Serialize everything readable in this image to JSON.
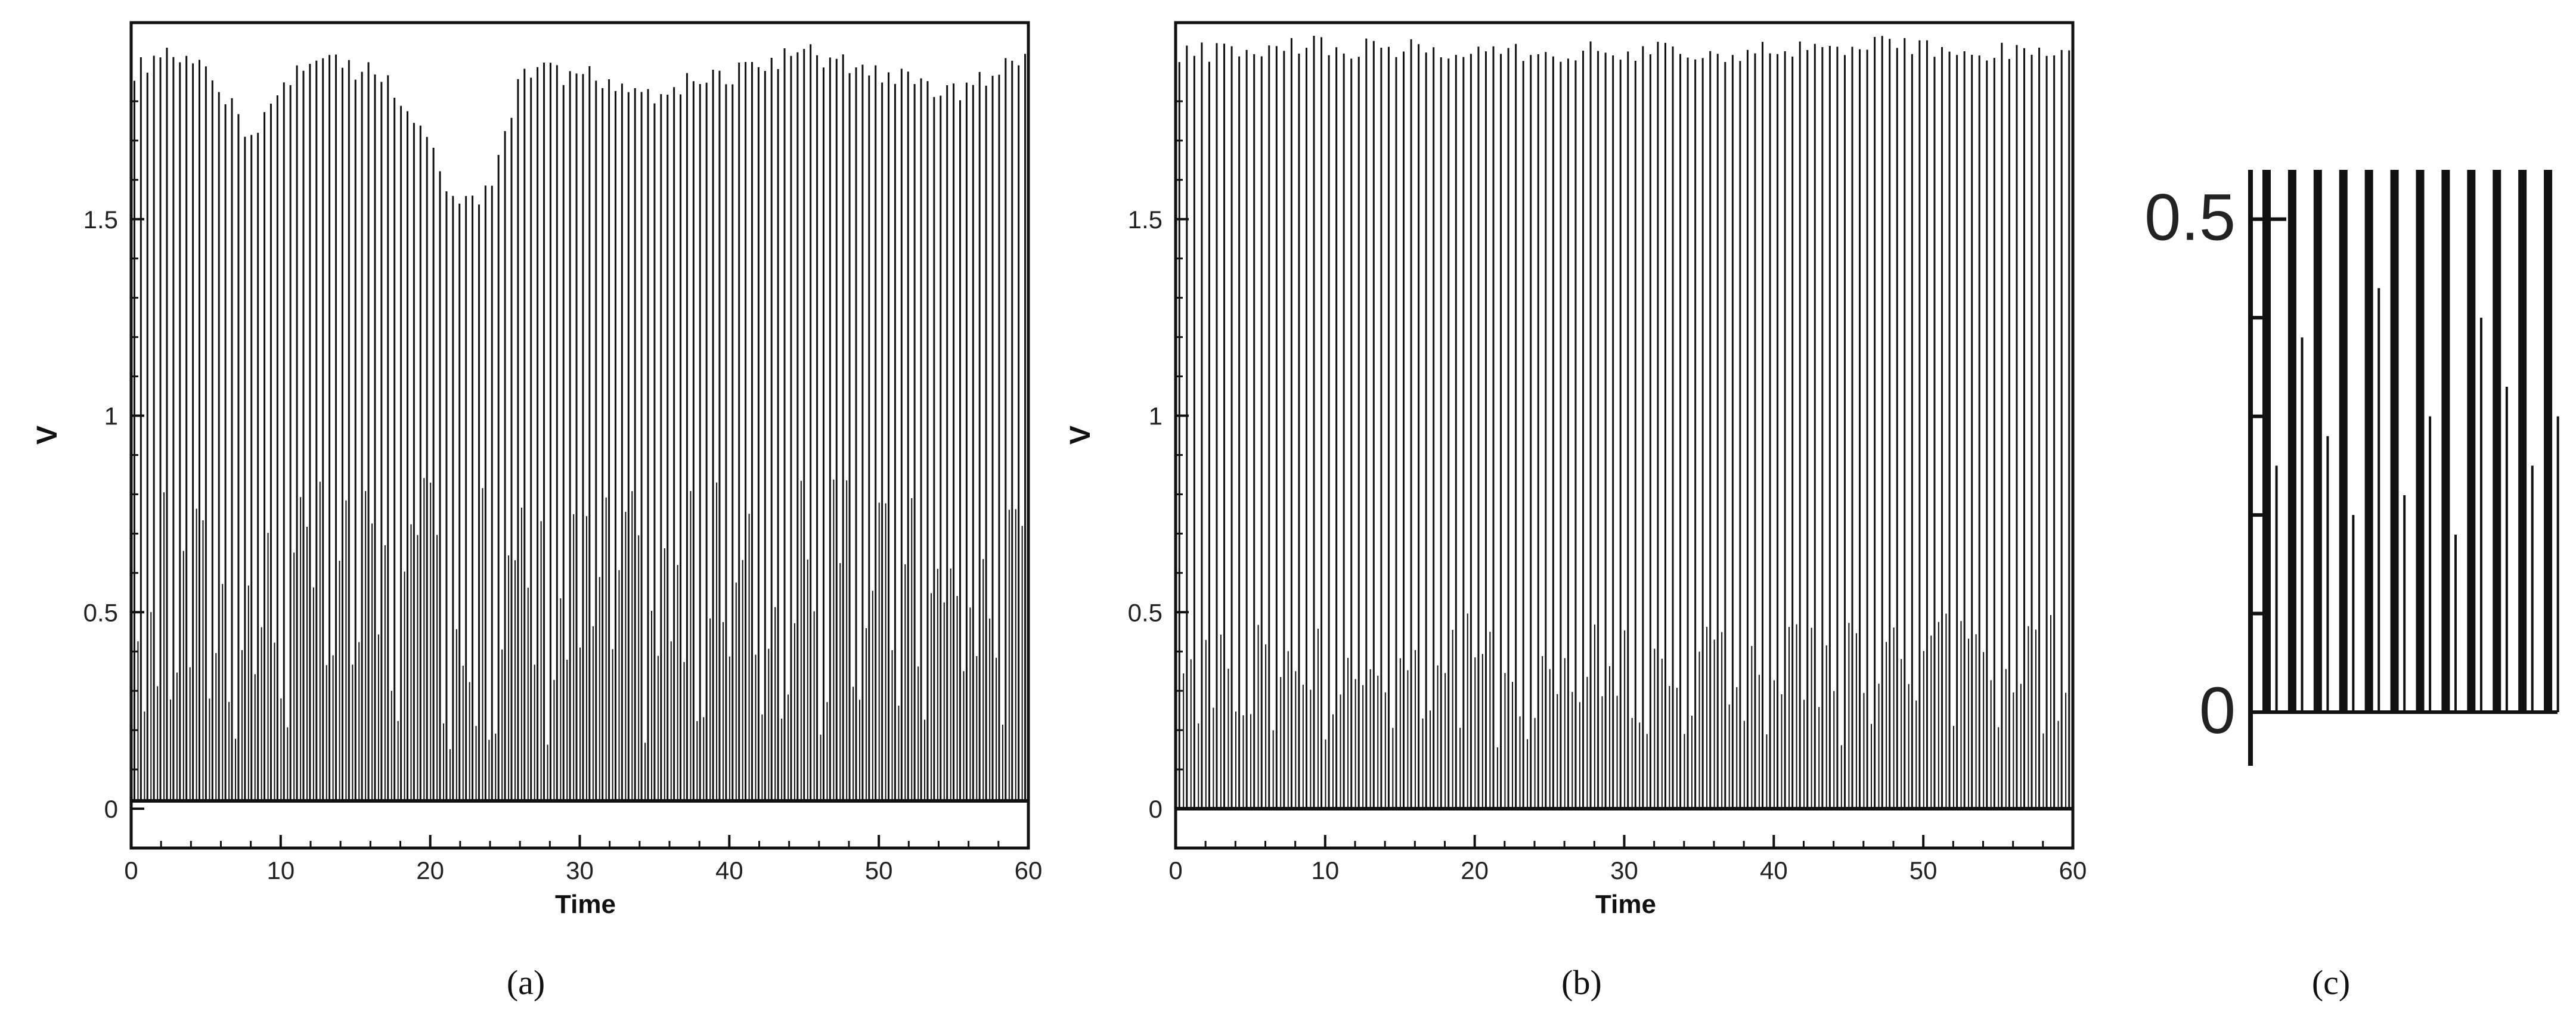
{
  "chart_data": [
    {
      "panel": "a",
      "type": "line",
      "xlabel": "Time",
      "ylabel": "V",
      "xlim": [
        0,
        60
      ],
      "ylim": [
        -0.1,
        2.0
      ],
      "xticks": [
        "0",
        "10",
        "20",
        "30",
        "40",
        "50",
        "60"
      ],
      "yticks": [
        "0",
        "0.5",
        "1",
        "1.5"
      ],
      "series": [
        {
          "spike_count": 138,
          "baseline": 0.02,
          "peak_envelope": {
            "t": [
              0,
              2,
              5,
              8,
              12,
              16,
              18,
              22,
              24,
              26,
              30,
              35,
              40,
              45,
              50,
              55,
              58,
              60
            ],
            "v": [
              1.9,
              1.95,
              1.9,
              1.75,
              1.95,
              1.9,
              1.85,
              1.55,
              1.6,
              1.9,
              1.9,
              1.85,
              1.9,
              1.95,
              1.9,
              1.85,
              1.9,
              1.95
            ]
          }
        }
      ]
    },
    {
      "panel": "b",
      "type": "line",
      "xlabel": "Time",
      "ylabel": "V",
      "xlim": [
        0,
        60
      ],
      "ylim": [
        -0.1,
        2.0
      ],
      "xticks": [
        "0",
        "10",
        "20",
        "30",
        "40",
        "50",
        "60"
      ],
      "yticks": [
        "0",
        "0.5",
        "1",
        "1.5"
      ],
      "series": [
        {
          "spike_count": 120,
          "baseline": 0.0,
          "peak_envelope": {
            "t": [
              0,
              10,
              20,
              30,
              40,
              50,
              60
            ],
            "v": [
              1.95,
              1.97,
              1.96,
              1.95,
              1.96,
              1.97,
              1.95
            ]
          }
        }
      ]
    },
    {
      "panel": "c",
      "type": "line",
      "ylim": [
        0,
        0.55
      ],
      "yticks": [
        "0",
        "0.5"
      ],
      "series": [
        {
          "spike_count": 12,
          "segment_values": [
            0.25,
            0.38,
            0.28,
            0.2,
            0.43,
            0.22,
            0.3,
            0.18,
            0.4,
            0.33,
            0.25,
            0.3
          ]
        }
      ]
    }
  ],
  "panel_labels": [
    "(a)",
    "(b)",
    "(c)"
  ],
  "colors": {
    "trace": "#111111",
    "axis": "#111111",
    "background": "#ffffff"
  }
}
